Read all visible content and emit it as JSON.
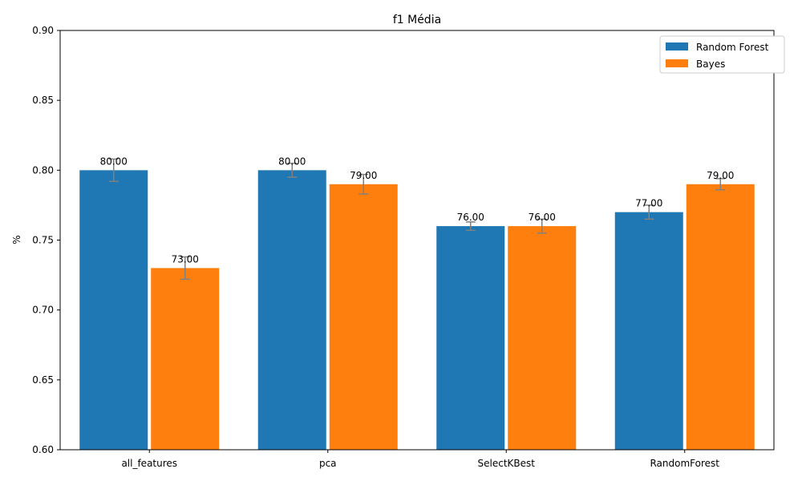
{
  "chart_data": {
    "type": "bar",
    "title": "f1 Média",
    "xlabel": "",
    "ylabel": "%",
    "ylim": [
      0.6,
      0.9
    ],
    "yticks": [
      "0.60",
      "0.65",
      "0.70",
      "0.75",
      "0.80",
      "0.85",
      "0.90"
    ],
    "categories": [
      "all_features",
      "pca",
      "SelectKBest",
      "RandomForest"
    ],
    "series": [
      {
        "name": "Random Forest",
        "color": "#1f77b4",
        "values": [
          0.8,
          0.8,
          0.76,
          0.77
        ],
        "errors": [
          0.008,
          0.005,
          0.003,
          0.005
        ],
        "labels": [
          "80.00",
          "80.00",
          "76.00",
          "77.00"
        ]
      },
      {
        "name": "Bayes",
        "color": "#ff7f0e",
        "values": [
          0.73,
          0.79,
          0.76,
          0.79
        ],
        "errors": [
          0.008,
          0.007,
          0.005,
          0.004
        ],
        "labels": [
          "73.00",
          "79.00",
          "76.00",
          "79.00"
        ]
      }
    ],
    "errorbar_color": "#808080",
    "grid": false,
    "legend_position": "top-right"
  }
}
